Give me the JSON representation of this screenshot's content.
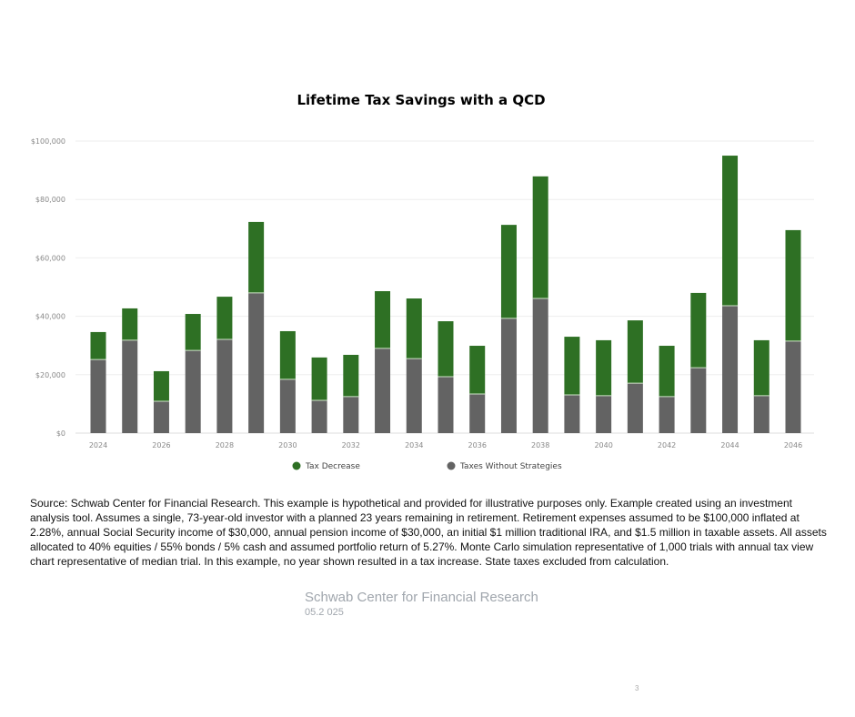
{
  "chart_data": {
    "type": "bar",
    "stacked": true,
    "title": "Lifetime Tax Savings with a QCD",
    "xlabel": "",
    "ylabel": "",
    "ylim": [
      0,
      100000
    ],
    "yticks": [
      0,
      20000,
      40000,
      60000,
      80000,
      100000
    ],
    "ytick_labels": [
      "$0",
      "$20,000",
      "$40,000",
      "$60,000",
      "$80,000",
      "$100,000"
    ],
    "grid": true,
    "legend_position": "bottom",
    "categories": [
      "2024",
      "2025",
      "2026",
      "2027",
      "2028",
      "2029",
      "2030",
      "2031",
      "2032",
      "2033",
      "2034",
      "2035",
      "2036",
      "2037",
      "2038",
      "2039",
      "2040",
      "2041",
      "2042",
      "2043",
      "2044",
      "2045",
      "2046"
    ],
    "xtick_labels": [
      "2024",
      "2026",
      "2028",
      "2030",
      "2032",
      "2034",
      "2036",
      "2038",
      "2040",
      "2042",
      "2044",
      "2046"
    ],
    "series": [
      {
        "name": "Taxes Without Strategies",
        "color": "#636363",
        "values": [
          25200,
          31800,
          10900,
          28300,
          32100,
          48000,
          18400,
          11200,
          12500,
          29000,
          25500,
          19300,
          13400,
          39300,
          46100,
          13100,
          12800,
          17100,
          12500,
          22400,
          43600,
          12800,
          31500
        ]
      },
      {
        "name": "Tax Decrease",
        "color": "#2e7024",
        "values": [
          9400,
          10900,
          10300,
          12500,
          14600,
          24300,
          16500,
          14700,
          14300,
          19600,
          20600,
          19000,
          16500,
          32000,
          41800,
          19900,
          19000,
          21500,
          17400,
          25600,
          51400,
          19000,
          38000
        ]
      }
    ],
    "legend_order": [
      "Tax Decrease",
      "Taxes Without Strategies"
    ]
  },
  "source_text": "Source: Schwab Center for Financial Research. This example is hypothetical and provided for illustrative purposes only. Example created using an investment analysis tool. Assumes a single, 73-year-old investor with a planned 23 years remaining in retirement. Retirement expenses assumed to be $100,000 inflated at 2.28%, annual Social Security income of $30,000, annual pension income of $30,000, an initial $1 million traditional IRA, and $1.5 million in taxable assets. All assets allocated to 40% equities / 55% bonds / 5% cash and assumed portfolio return of 5.27%. Monte Carlo simulation representative of 1,000 trials with annual tax view chart representative of median trial. In this example, no year shown resulted in a tax increase. State taxes excluded from calculation.",
  "footer": {
    "org": "Schwab Center for Financial Research",
    "date": "05.2 025",
    "page_number": "3"
  }
}
